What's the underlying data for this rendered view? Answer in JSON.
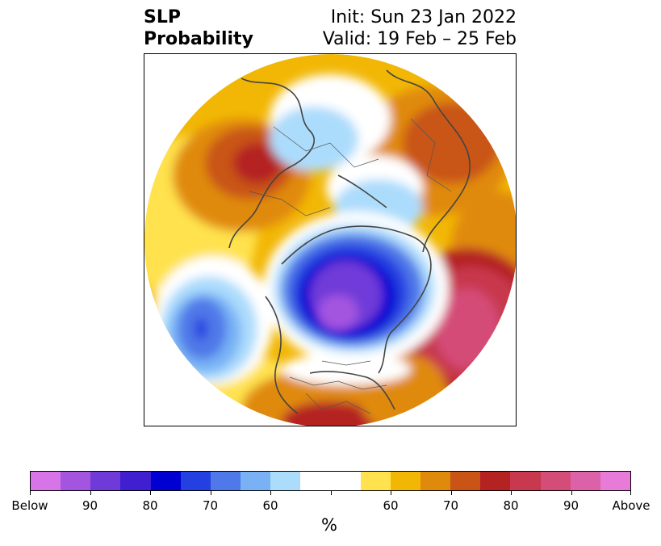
{
  "title": {
    "line1": "SLP",
    "line2": "Probability",
    "init": "Init: Sun 23 Jan 2022",
    "valid": "Valid: 19 Feb – 25 Feb"
  },
  "map": {
    "projection": "north-polar-stereographic",
    "features": [
      "probability-shading",
      "coastlines",
      "country-borders",
      "us-state-borders"
    ]
  },
  "colorbar": {
    "below_colors": [
      "#d774e8",
      "#a455e0",
      "#6f3ad8",
      "#3f1fd0",
      "#0000d2",
      "#2540e0",
      "#4f78e8",
      "#78b2f5",
      "#acdcfc"
    ],
    "neutral_color": "#ffffff",
    "above_colors": [
      "#ffe24e",
      "#f2b705",
      "#e08a0c",
      "#c95416",
      "#b52222",
      "#c8384e",
      "#d44c78",
      "#db62a8",
      "#e87ad8"
    ],
    "tick_labels": [
      "Below",
      "90",
      "80",
      "70",
      "60",
      "60",
      "70",
      "80",
      "90",
      "Above"
    ],
    "unit": "%"
  }
}
